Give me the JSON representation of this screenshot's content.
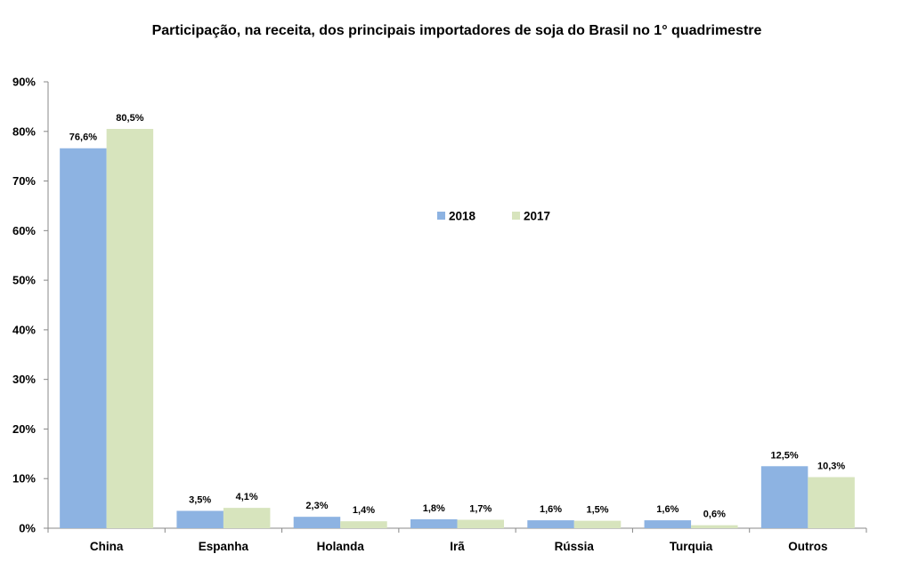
{
  "chart_data": {
    "type": "bar",
    "title": "Participação, na receita, dos principais importadores de soja do Brasil no 1° quadrimestre",
    "categories": [
      "China",
      "Espanha",
      "Holanda",
      "Irã",
      "Rússia",
      "Turquia",
      "Outros"
    ],
    "series": [
      {
        "name": "2018",
        "color": "#8db3e2",
        "values": [
          76.6,
          3.5,
          2.3,
          1.8,
          1.6,
          1.6,
          12.5
        ],
        "labels": [
          "76,6%",
          "3,5%",
          "2,3%",
          "1,8%",
          "1,6%",
          "1,6%",
          "12,5%"
        ]
      },
      {
        "name": "2017",
        "color": "#d7e4bd",
        "values": [
          80.5,
          4.1,
          1.4,
          1.7,
          1.5,
          0.6,
          10.3
        ],
        "labels": [
          "80,5%",
          "4,1%",
          "1,4%",
          "1,7%",
          "1,5%",
          "0,6%",
          "10,3%"
        ]
      }
    ],
    "ylim": [
      0,
      90
    ],
    "yticks": [
      0,
      10,
      20,
      30,
      40,
      50,
      60,
      70,
      80,
      90
    ],
    "ytick_labels": [
      "0%",
      "10%",
      "20%",
      "30%",
      "40%",
      "50%",
      "60%",
      "70%",
      "80%",
      "90%"
    ],
    "xlabel": "",
    "ylabel": "",
    "grid": false,
    "legend_position": "center"
  }
}
